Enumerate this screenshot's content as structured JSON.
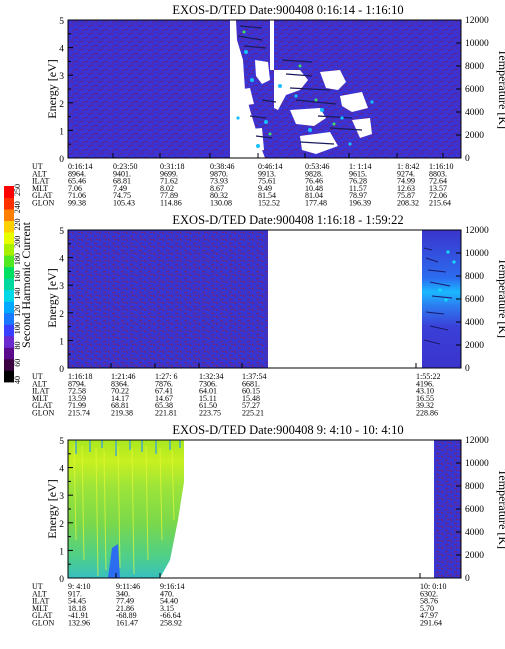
{
  "figure": {
    "colorbar": {
      "label": "Second Harmonic Current",
      "ticks": [
        "40",
        "60",
        "80",
        "100",
        "120",
        "140",
        "160",
        "180",
        "200",
        "220",
        "240",
        "250"
      ],
      "colors": [
        "#000000",
        "#3a0040",
        "#5a0a8a",
        "#6a2ad0",
        "#3a40ff",
        "#1878ff",
        "#00a8ff",
        "#00d8e8",
        "#00d8a0",
        "#00e060",
        "#50e820",
        "#a8f000",
        "#e8ff00",
        "#ffd000",
        "#ff8000",
        "#ff3000",
        "#ff0000"
      ]
    }
  },
  "panels": [
    {
      "title": "EXOS-D/TED   Date:900408  0:16:14 - 1:16:10",
      "ylabel": "Energy [eV]",
      "y2label": "Temperature [K]",
      "ytick_labels": [
        "0",
        "1",
        "2",
        "3",
        "4",
        "5"
      ],
      "y2tick_labels": [
        "0",
        "2000",
        "4000",
        "6000",
        "8000",
        "10000",
        "12000"
      ],
      "eph_labels": [
        "UT",
        "ALT",
        "ILAT",
        "MLT",
        "GLAT",
        "GLON"
      ],
      "eph_columns": [
        [
          "0:16:14",
          "8964.",
          "65.46",
          "7.06",
          "71.06",
          "99.38"
        ],
        [
          "0:23:50",
          "9401.",
          "68.81",
          "7.49",
          "74.75",
          "105.43"
        ],
        [
          "0:31:18",
          "9699.",
          "71.62",
          "8.02",
          "77.89",
          "114.86"
        ],
        [
          "0:38:46",
          "9870.",
          "73.93",
          "8.67",
          "80.32",
          "130.08"
        ],
        [
          "0:46:14",
          "9913.",
          "75.61",
          "9.49",
          "81.54",
          "152.52"
        ],
        [
          "0:53:46",
          "9828.",
          "76.46",
          "10.48",
          "81.04",
          "177.48"
        ],
        [
          "1: 1:14",
          "9615.",
          "76.28",
          "11.57",
          "78.97",
          "196.39"
        ],
        [
          "1: 8:42",
          "9274.",
          "74.99",
          "12.63",
          "75.87",
          "208.32"
        ],
        [
          "1:16:10",
          "8803.",
          "72.64",
          "13.57",
          "72.06",
          "215.64"
        ]
      ]
    },
    {
      "title": "EXOS-D/TED   Date:900408  1:16:18 - 1:59:22",
      "ylabel": "Energy [eV]",
      "y2label": "Temperature [K]",
      "ytick_labels": [
        "0",
        "1",
        "2",
        "3",
        "4",
        "5"
      ],
      "y2tick_labels": [
        "0",
        "2000",
        "4000",
        "6000",
        "8000",
        "10000",
        "12000"
      ],
      "eph_labels": [
        "UT",
        "ALT",
        "ILAT",
        "MLT",
        "GLAT",
        "GLON"
      ],
      "eph_columns": [
        [
          "1:16:18",
          "8794.",
          "72.58",
          "13.59",
          "71.99",
          "215.74"
        ],
        [
          "1:21:46",
          "8364.",
          "70.22",
          "14.17",
          "68.81",
          "219.38"
        ],
        [
          "1:27: 6",
          "7876.",
          "67.41",
          "14.67",
          "65.38",
          "221.81"
        ],
        [
          "1:32:34",
          "7306.",
          "64.01",
          "15.11",
          "61.50",
          "223.75"
        ],
        [
          "1:37:54",
          "6681.",
          "60.15",
          "15.48",
          "57.27",
          "225.21"
        ],
        [
          "1:55:22",
          "4196.",
          "43.10",
          "16.55",
          "39.32",
          "228.86"
        ]
      ]
    },
    {
      "title": "EXOS-D/TED   Date:900408  9: 4:10 - 10: 4:10",
      "ylabel": "Energy [eV]",
      "y2label": "Temperature [K]",
      "ytick_labels": [
        "0",
        "1",
        "2",
        "3",
        "4",
        "5"
      ],
      "y2tick_labels": [
        "0",
        "2000",
        "4000",
        "6000",
        "8000",
        "10000",
        "12000"
      ],
      "eph_labels": [
        "UT",
        "ALT",
        "ILAT",
        "MLT",
        "GLAT",
        "GLON"
      ],
      "eph_columns": [
        [
          "9: 4:10",
          "917.",
          "54.45",
          "18.18",
          "-41.91",
          "132.96"
        ],
        [
          "9:11:46",
          "340.",
          "77.49",
          "21.86",
          "-68.89",
          "161.47"
        ],
        [
          "9:16:14",
          "470.",
          "54.40",
          "3.15",
          "-66.64",
          "258.92"
        ],
        [
          "10: 0:10",
          "6302.",
          "58.76",
          "5.70",
          "47.97",
          "291.64"
        ]
      ]
    }
  ],
  "chart_data": [
    {
      "type": "heatmap",
      "title": "EXOS-D/TED   Date:900408  0:16:14 - 1:16:10",
      "ylabel": "Energy [eV]",
      "y2label": "Temperature [K]",
      "x_time_ticks": [
        "0:16:14",
        "0:23:50",
        "0:31:18",
        "0:38:46",
        "0:46:14",
        "0:53:46",
        "1: 1:14",
        "1: 8:42",
        "1:16:10"
      ],
      "ylim": [
        0,
        5
      ],
      "y2lim": [
        0,
        12000
      ],
      "colorbar_range": [
        40,
        250
      ],
      "data_regions": [
        {
          "time_start": "0:16:14",
          "time_end": "0:40:30",
          "level": 80
        },
        {
          "time_start": "0:40:30",
          "time_end": "0:50:00",
          "level": "saturated/high-variance"
        },
        {
          "time_start": "0:50:00",
          "time_end": "1:08:00",
          "level": "mixed"
        },
        {
          "time_start": "1:08:00",
          "time_end": "1:16:10",
          "level": 80
        }
      ]
    },
    {
      "type": "heatmap",
      "title": "EXOS-D/TED   Date:900408  1:16:18 - 1:59:22",
      "ylabel": "Energy [eV]",
      "y2label": "Temperature [K]",
      "x_time_ticks": [
        "1:16:18",
        "1:21:46",
        "1:27: 6",
        "1:32:34",
        "1:37:54",
        "1:55:22"
      ],
      "ylim": [
        0,
        5
      ],
      "y2lim": [
        0,
        12000
      ],
      "colorbar_range": [
        40,
        250
      ],
      "data_regions": [
        {
          "time_start": "1:16:18",
          "time_end": "1:39:30",
          "level": 80
        },
        {
          "time_start": "1:39:30",
          "time_end": "1:55:00",
          "level": "no data"
        },
        {
          "time_start": "1:55:00",
          "time_end": "1:59:22",
          "level": 110
        }
      ]
    },
    {
      "type": "heatmap",
      "title": "EXOS-D/TED   Date:900408  9: 4:10 - 10: 4:10",
      "ylabel": "Energy [eV]",
      "y2label": "Temperature [K]",
      "x_time_ticks": [
        "9: 4:10",
        "9:11:46",
        "9:16:14",
        "10: 0:10"
      ],
      "ylim": [
        0,
        5
      ],
      "y2lim": [
        0,
        12000
      ],
      "colorbar_range": [
        40,
        250
      ],
      "data_regions": [
        {
          "time_start": "9: 4:10",
          "time_end": "9:17:00",
          "level": 200
        },
        {
          "time_start": "9:17:00",
          "time_end": "10: 0:10",
          "level": "no data"
        },
        {
          "time_start": "10: 0:10",
          "time_end": "10: 4:10",
          "level": 80
        }
      ]
    }
  ]
}
